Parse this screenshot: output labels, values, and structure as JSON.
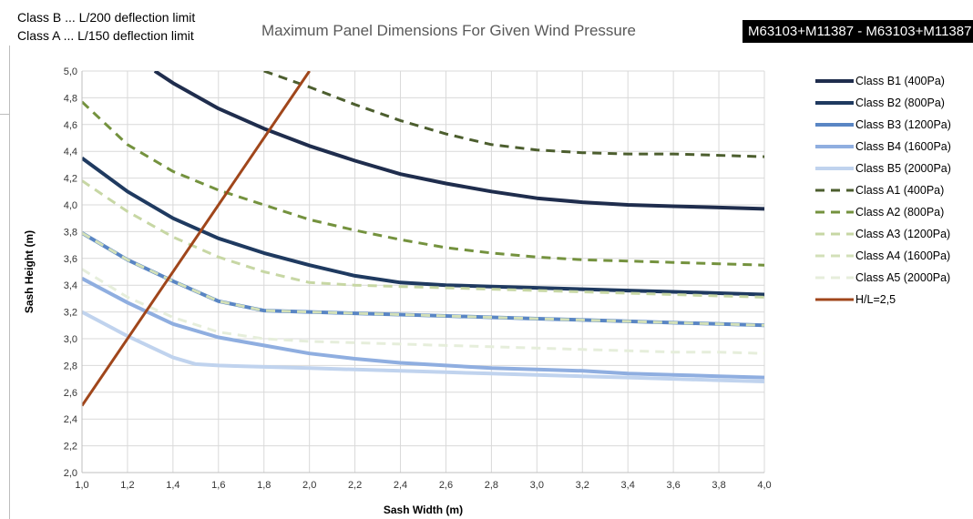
{
  "notes": {
    "line1": "Class B ... L/200 deflection limit",
    "line2": "Class A ... L/150 deflection limit"
  },
  "badge": "M63103+M11387 - M63103+M11387",
  "chart_data": {
    "type": "line",
    "title": "Maximum Panel Dimensions For Given Wind Pressure",
    "xlabel": "Sash Width (m)",
    "ylabel": "Sash Height (m)",
    "xlim": [
      1.0,
      4.0
    ],
    "ylim": [
      2.0,
      5.0
    ],
    "x_ticks": [
      "1,0",
      "1,2",
      "1,4",
      "1,6",
      "1,8",
      "2,0",
      "2,2",
      "2,4",
      "2,6",
      "2,8",
      "3,0",
      "3,2",
      "3,4",
      "3,6",
      "3,8",
      "4,0"
    ],
    "y_ticks": [
      "2,0",
      "2,2",
      "2,4",
      "2,6",
      "2,8",
      "3,0",
      "3,2",
      "3,4",
      "3,6",
      "3,8",
      "4,0",
      "4,2",
      "4,4",
      "4,6",
      "4,8",
      "5,0"
    ],
    "grid": true,
    "legend_position": "right",
    "series": [
      {
        "name": "Class B1 (400Pa)",
        "color": "#1f2d4d",
        "dash": "solid",
        "width": 4,
        "points": [
          [
            1.32,
            5.0
          ],
          [
            1.4,
            4.91
          ],
          [
            1.6,
            4.72
          ],
          [
            1.8,
            4.57
          ],
          [
            2.0,
            4.44
          ],
          [
            2.2,
            4.33
          ],
          [
            2.4,
            4.23
          ],
          [
            2.6,
            4.16
          ],
          [
            2.8,
            4.1
          ],
          [
            3.0,
            4.05
          ],
          [
            3.2,
            4.02
          ],
          [
            3.4,
            4.0
          ],
          [
            3.6,
            3.99
          ],
          [
            3.8,
            3.98
          ],
          [
            4.0,
            3.97
          ]
        ]
      },
      {
        "name": "Class B2 (800Pa)",
        "color": "#1f3a60",
        "dash": "solid",
        "width": 4,
        "points": [
          [
            1.0,
            4.35
          ],
          [
            1.2,
            4.1
          ],
          [
            1.4,
            3.9
          ],
          [
            1.6,
            3.75
          ],
          [
            1.8,
            3.64
          ],
          [
            2.0,
            3.55
          ],
          [
            2.2,
            3.47
          ],
          [
            2.4,
            3.42
          ],
          [
            2.6,
            3.4
          ],
          [
            2.8,
            3.39
          ],
          [
            3.0,
            3.38
          ],
          [
            3.2,
            3.37
          ],
          [
            3.4,
            3.36
          ],
          [
            3.6,
            3.35
          ],
          [
            3.8,
            3.34
          ],
          [
            4.0,
            3.33
          ]
        ]
      },
      {
        "name": "Class B3 (1200Pa)",
        "color": "#5a86c4",
        "dash": "solid",
        "width": 4,
        "points": [
          [
            1.0,
            3.79
          ],
          [
            1.2,
            3.59
          ],
          [
            1.4,
            3.43
          ],
          [
            1.6,
            3.28
          ],
          [
            1.8,
            3.21
          ],
          [
            2.0,
            3.2
          ],
          [
            2.2,
            3.19
          ],
          [
            2.4,
            3.18
          ],
          [
            2.6,
            3.17
          ],
          [
            2.8,
            3.16
          ],
          [
            3.0,
            3.15
          ],
          [
            3.2,
            3.14
          ],
          [
            3.4,
            3.13
          ],
          [
            3.6,
            3.12
          ],
          [
            3.8,
            3.11
          ],
          [
            4.0,
            3.1
          ]
        ]
      },
      {
        "name": "Class B4 (1600Pa)",
        "color": "#8faee0",
        "dash": "solid",
        "width": 4,
        "points": [
          [
            1.0,
            3.45
          ],
          [
            1.2,
            3.27
          ],
          [
            1.4,
            3.11
          ],
          [
            1.6,
            3.01
          ],
          [
            1.8,
            2.95
          ],
          [
            2.0,
            2.89
          ],
          [
            2.2,
            2.85
          ],
          [
            2.4,
            2.82
          ],
          [
            2.6,
            2.8
          ],
          [
            2.8,
            2.78
          ],
          [
            3.0,
            2.77
          ],
          [
            3.2,
            2.76
          ],
          [
            3.4,
            2.74
          ],
          [
            3.6,
            2.73
          ],
          [
            3.8,
            2.72
          ],
          [
            4.0,
            2.71
          ]
        ]
      },
      {
        "name": "Class B5 (2000Pa)",
        "color": "#c0d3ee",
        "dash": "solid",
        "width": 4,
        "points": [
          [
            1.0,
            3.2
          ],
          [
            1.2,
            3.02
          ],
          [
            1.4,
            2.86
          ],
          [
            1.5,
            2.81
          ],
          [
            1.6,
            2.8
          ],
          [
            1.8,
            2.79
          ],
          [
            2.0,
            2.78
          ],
          [
            2.2,
            2.77
          ],
          [
            2.4,
            2.76
          ],
          [
            2.6,
            2.75
          ],
          [
            2.8,
            2.74
          ],
          [
            3.0,
            2.73
          ],
          [
            3.2,
            2.72
          ],
          [
            3.4,
            2.71
          ],
          [
            3.6,
            2.7
          ],
          [
            3.8,
            2.69
          ],
          [
            4.0,
            2.68
          ]
        ]
      },
      {
        "name": "Class A1 (400Pa)",
        "color": "#4c5e2e",
        "dash": "dashed",
        "width": 3,
        "points": [
          [
            1.8,
            5.0
          ],
          [
            2.0,
            4.88
          ],
          [
            2.2,
            4.75
          ],
          [
            2.4,
            4.63
          ],
          [
            2.6,
            4.53
          ],
          [
            2.8,
            4.45
          ],
          [
            3.0,
            4.41
          ],
          [
            3.2,
            4.39
          ],
          [
            3.4,
            4.38
          ],
          [
            3.6,
            4.38
          ],
          [
            3.8,
            4.37
          ],
          [
            4.0,
            4.36
          ]
        ]
      },
      {
        "name": "Class A2 (800Pa)",
        "color": "#74923e",
        "dash": "dashed",
        "width": 3,
        "points": [
          [
            1.0,
            4.77
          ],
          [
            1.2,
            4.45
          ],
          [
            1.4,
            4.25
          ],
          [
            1.6,
            4.11
          ],
          [
            1.8,
            4.0
          ],
          [
            2.0,
            3.89
          ],
          [
            2.2,
            3.81
          ],
          [
            2.4,
            3.74
          ],
          [
            2.6,
            3.68
          ],
          [
            2.8,
            3.64
          ],
          [
            3.0,
            3.61
          ],
          [
            3.2,
            3.59
          ],
          [
            3.4,
            3.58
          ],
          [
            3.6,
            3.57
          ],
          [
            3.8,
            3.56
          ],
          [
            4.0,
            3.55
          ]
        ]
      },
      {
        "name": "Class A3 (1200Pa)",
        "color": "#c7d7a4",
        "dash": "dashed",
        "width": 3,
        "points": [
          [
            1.0,
            4.18
          ],
          [
            1.2,
            3.95
          ],
          [
            1.4,
            3.76
          ],
          [
            1.6,
            3.61
          ],
          [
            1.8,
            3.5
          ],
          [
            2.0,
            3.42
          ],
          [
            2.2,
            3.4
          ],
          [
            2.4,
            3.39
          ],
          [
            2.6,
            3.38
          ],
          [
            2.8,
            3.37
          ],
          [
            3.0,
            3.36
          ],
          [
            3.2,
            3.35
          ],
          [
            3.4,
            3.34
          ],
          [
            3.6,
            3.33
          ],
          [
            3.8,
            3.32
          ],
          [
            4.0,
            3.31
          ]
        ]
      },
      {
        "name": "Class A4 (1600Pa)",
        "color": "#d3e0b8",
        "dash": "dashed",
        "width": 3,
        "points": [
          [
            1.0,
            3.79
          ],
          [
            1.2,
            3.59
          ],
          [
            1.4,
            3.43
          ],
          [
            1.6,
            3.28
          ],
          [
            1.8,
            3.21
          ],
          [
            2.0,
            3.2
          ],
          [
            2.2,
            3.19
          ],
          [
            2.4,
            3.18
          ],
          [
            2.6,
            3.17
          ],
          [
            2.8,
            3.16
          ],
          [
            3.0,
            3.15
          ],
          [
            3.2,
            3.14
          ],
          [
            3.4,
            3.13
          ],
          [
            3.6,
            3.12
          ],
          [
            3.8,
            3.11
          ],
          [
            4.0,
            3.1
          ]
        ]
      },
      {
        "name": "Class A5 (2000Pa)",
        "color": "#e6eedb",
        "dash": "dashed",
        "width": 3,
        "points": [
          [
            1.0,
            3.52
          ],
          [
            1.2,
            3.31
          ],
          [
            1.4,
            3.16
          ],
          [
            1.6,
            3.05
          ],
          [
            1.8,
            3.0
          ],
          [
            2.0,
            2.98
          ],
          [
            2.2,
            2.97
          ],
          [
            2.4,
            2.96
          ],
          [
            2.6,
            2.95
          ],
          [
            2.8,
            2.94
          ],
          [
            3.0,
            2.93
          ],
          [
            3.2,
            2.92
          ],
          [
            3.4,
            2.91
          ],
          [
            3.6,
            2.9
          ],
          [
            3.8,
            2.9
          ],
          [
            4.0,
            2.89
          ]
        ]
      },
      {
        "name": "H/L=2,5",
        "color": "#a0461b",
        "dash": "solid",
        "width": 3,
        "points": [
          [
            1.0,
            2.5
          ],
          [
            2.0,
            5.0
          ]
        ]
      }
    ]
  }
}
